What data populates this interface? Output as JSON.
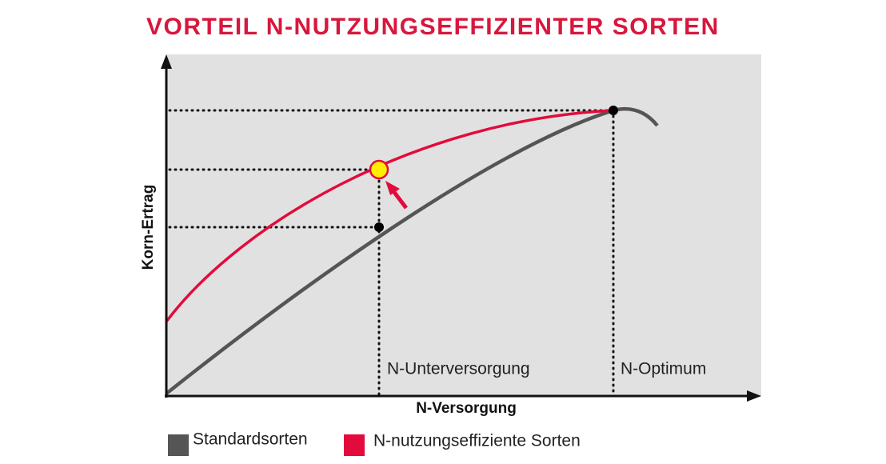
{
  "title": "VORTEIL N-NUTZUNGSEFFIZIENTER SORTEN",
  "axes": {
    "x_label": "N-Versorgung",
    "y_label": "Korn-Ertrag"
  },
  "annotations": {
    "under": "N-Unterversorgung",
    "optimum": "N-Optimum"
  },
  "legend": [
    {
      "label": "Standardsorten",
      "color": "#555555"
    },
    {
      "label": "N-nutzungseffiziente Sorten",
      "color": "#e30b3b"
    }
  ]
}
